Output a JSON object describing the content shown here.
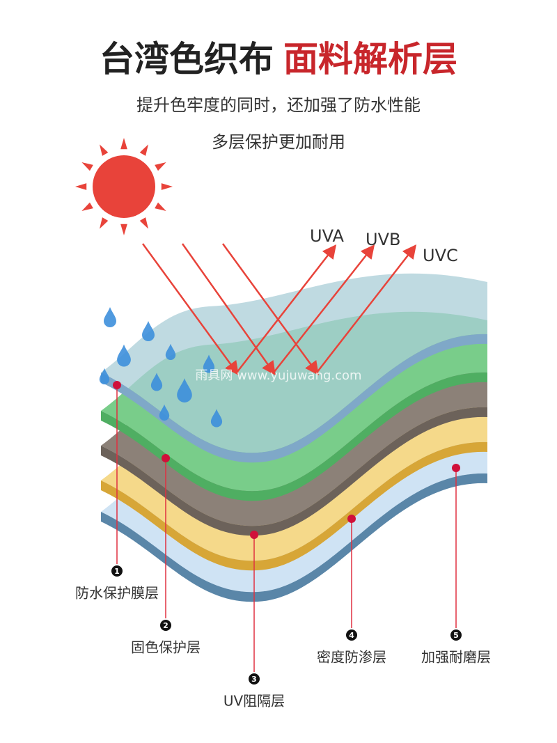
{
  "header": {
    "title_main": "台湾色织布",
    "title_accent": "面料解析层",
    "subtitle_lines": [
      "提升色牢度的同时，还加强了防水性能",
      "多层保护更加耐用"
    ]
  },
  "rays": [
    "UVA",
    "UVB",
    "UVC"
  ],
  "watermark": "雨具网 www.yujuwang.com",
  "layers": [
    {
      "number": 1,
      "label": "防水保护膜层"
    },
    {
      "number": 2,
      "label": "固色保护层"
    },
    {
      "number": 3,
      "label": "UV阻隔层"
    },
    {
      "number": 4,
      "label": "密度防渗层"
    },
    {
      "number": 5,
      "label": "加强耐磨层"
    }
  ]
}
